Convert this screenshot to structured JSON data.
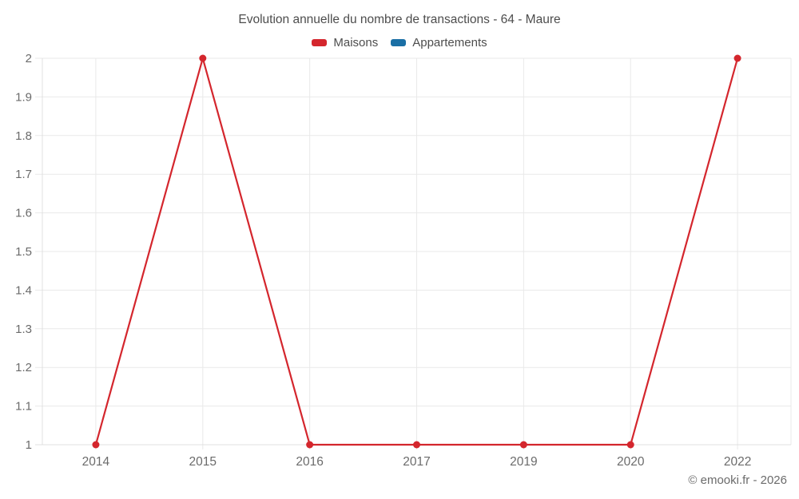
{
  "header": {
    "title": "Evolution annuelle du nombre de transactions - 64 - Maure"
  },
  "legend": {
    "items": [
      {
        "label": "Maisons",
        "color": "#d4262d"
      },
      {
        "label": "Appartements",
        "color": "#1a6fa5"
      }
    ]
  },
  "footer": {
    "credit": "© emooki.fr - 2026"
  },
  "colors": {
    "grid": "#e9e9e9",
    "axis": "#e0e0e0",
    "tick_label": "#6b6b6b",
    "title_text": "#4d4d4d",
    "maisons": "#d4262d",
    "appartements": "#1a6fa5"
  },
  "chart_data": {
    "type": "line",
    "title": "Evolution annuelle du nombre de transactions - 64 - Maure",
    "categories": [
      "2014",
      "2015",
      "2016",
      "2017",
      "2019",
      "2020",
      "2022"
    ],
    "series": [
      {
        "name": "Maisons",
        "color": "#d4262d",
        "values": [
          1,
          2,
          1,
          1,
          1,
          1,
          2
        ]
      },
      {
        "name": "Appartements",
        "color": "#1a6fa5",
        "values": []
      }
    ],
    "xlabel": "",
    "ylabel": "",
    "ylim": [
      1,
      2
    ],
    "y_ticks": [
      "1",
      "1.1",
      "1.2",
      "1.3",
      "1.4",
      "1.5",
      "1.6",
      "1.7",
      "1.8",
      "1.9",
      "2"
    ],
    "grid": true,
    "legend_position": "top",
    "marker": "circle"
  }
}
